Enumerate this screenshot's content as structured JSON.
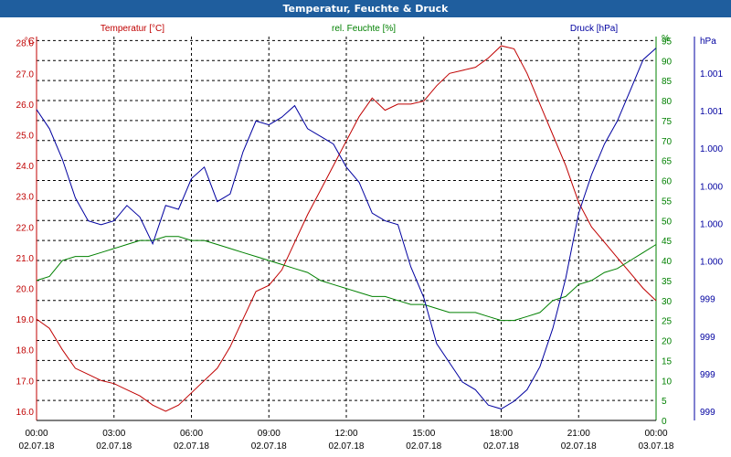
{
  "window": {
    "title": "Temperatur, Feuchte & Druck"
  },
  "chart_data": {
    "type": "line",
    "title": "Temperatur, Feuchte & Druck",
    "grid": true,
    "x": {
      "ticks": [
        {
          "time": "00:00",
          "date": "02.07.18"
        },
        {
          "time": "03:00",
          "date": "02.07.18"
        },
        {
          "time": "06:00",
          "date": "02.07.18"
        },
        {
          "time": "09:00",
          "date": "02.07.18"
        },
        {
          "time": "12:00",
          "date": "02.07.18"
        },
        {
          "time": "15:00",
          "date": "02.07.18"
        },
        {
          "time": "18:00",
          "date": "02.07.18"
        },
        {
          "time": "21:00",
          "date": "02.07.18"
        },
        {
          "time": "00:00",
          "date": "03.07.18"
        }
      ]
    },
    "axes": {
      "temperature": {
        "label": "Temperatur [°C]",
        "unit": "°C",
        "color": "#c00000",
        "ylim": [
          15.7,
          28.2
        ],
        "ticks": [
          "16.0",
          "17.0",
          "18.0",
          "19.0",
          "20.0",
          "21.0",
          "22.0",
          "23.0",
          "24.0",
          "25.0",
          "26.0",
          "27.0",
          "28.0"
        ]
      },
      "humidity": {
        "label": "rel. Feuchte [%]",
        "unit": "%",
        "color": "#008000",
        "ylim": [
          0,
          96
        ],
        "ticks": [
          "0",
          "5",
          "10",
          "15",
          "20",
          "25",
          "30",
          "35",
          "40",
          "45",
          "50",
          "55",
          "60",
          "65",
          "70",
          "75",
          "80",
          "85",
          "90",
          "95",
          "%"
        ]
      },
      "pressure": {
        "label": "Druck [hPa]",
        "unit": "hPa",
        "color": "#0000a0",
        "ylim": [
          0,
          100
        ],
        "ticks": [
          "999",
          "999",
          "999",
          "999",
          "1.000",
          "1.000",
          "1.000",
          "1.000",
          "1.001",
          "1.001",
          "hPa"
        ]
      }
    },
    "series": [
      {
        "name": "Temperatur [°C]",
        "axis": "temperature",
        "color": "#c00000",
        "x": [
          0,
          0.5,
          1,
          1.5,
          2,
          2.5,
          3,
          3.5,
          4,
          4.5,
          5,
          5.5,
          6,
          6.5,
          7,
          7.5,
          8,
          8.5,
          9,
          9.5,
          10,
          10.5,
          11,
          11.5,
          12,
          12.5,
          13,
          13.5,
          14,
          14.5,
          15,
          15.5,
          16,
          16.5,
          17,
          17.5,
          18,
          18.5,
          19,
          19.5,
          20,
          20.5,
          21,
          21.5,
          22,
          22.5,
          23,
          23.5,
          24
        ],
        "values": [
          19.0,
          18.7,
          18.0,
          17.4,
          17.2,
          17.0,
          16.9,
          16.7,
          16.5,
          16.2,
          16.0,
          16.2,
          16.6,
          17.0,
          17.4,
          18.1,
          19.0,
          19.9,
          20.1,
          20.6,
          21.5,
          22.4,
          23.2,
          24.0,
          24.8,
          25.6,
          26.2,
          25.8,
          26.0,
          26.0,
          26.1,
          26.6,
          27.0,
          27.1,
          27.2,
          27.5,
          27.9,
          27.8,
          27.0,
          26.0,
          25.0,
          24.0,
          22.8,
          22.0,
          21.5,
          21.0,
          20.5,
          20.0,
          19.6
        ]
      },
      {
        "name": "rel. Feuchte [%]",
        "axis": "humidity",
        "color": "#008000",
        "x": [
          0,
          0.5,
          1,
          1.5,
          2,
          2.5,
          3,
          3.5,
          4,
          4.5,
          5,
          5.5,
          6,
          6.5,
          7,
          7.5,
          8,
          8.5,
          9,
          9.5,
          10,
          10.5,
          11,
          11.5,
          12,
          12.5,
          13,
          13.5,
          14,
          14.5,
          15,
          15.5,
          16,
          16.5,
          17,
          17.5,
          18,
          18.5,
          19,
          19.5,
          20,
          20.5,
          21,
          21.5,
          22,
          22.5,
          23,
          23.5,
          24
        ],
        "values": [
          35,
          36,
          40,
          41,
          41,
          42,
          43,
          44,
          45,
          45,
          46,
          46,
          45,
          45,
          44,
          43,
          42,
          41,
          40,
          39,
          38,
          37,
          35,
          34,
          33,
          32,
          31,
          31,
          30,
          29,
          29,
          28,
          27,
          27,
          27,
          26,
          25,
          25,
          26,
          27,
          30,
          31,
          34,
          35,
          37,
          38,
          40,
          42,
          44
        ]
      },
      {
        "name": "Druck [hPa]",
        "axis": "pressure",
        "color": "#0000a0",
        "x": [
          0,
          0.5,
          1,
          1.5,
          2,
          2.5,
          3,
          3.5,
          4,
          4.5,
          5,
          5.5,
          6,
          6.5,
          7,
          7.5,
          8,
          8.5,
          9,
          9.5,
          10,
          10.5,
          11,
          11.5,
          12,
          12.5,
          13,
          13.5,
          14,
          14.5,
          15,
          15.5,
          16,
          16.5,
          17,
          17.5,
          18,
          18.5,
          19,
          19.5,
          20,
          20.5,
          21,
          21.5,
          22,
          22.5,
          23,
          23.5,
          24
        ],
        "values": [
          81,
          76,
          68,
          58,
          52,
          51,
          52,
          56,
          53,
          46,
          56,
          55,
          63,
          66,
          57,
          59,
          70,
          78,
          77,
          79,
          82,
          76,
          74,
          72,
          66,
          62,
          54,
          52,
          51,
          40,
          32,
          20,
          15,
          10,
          8,
          4,
          3,
          5,
          8,
          14,
          24,
          37,
          54,
          64,
          72,
          78,
          86,
          94,
          97
        ]
      }
    ]
  }
}
